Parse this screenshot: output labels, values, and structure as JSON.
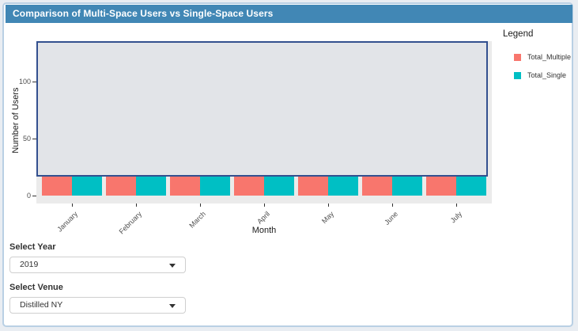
{
  "header": {
    "title": "Comparison of Multi-Space Users vs Single-Space Users"
  },
  "chart_data": {
    "type": "bar",
    "categories": [
      "January",
      "February",
      "March",
      "April",
      "May",
      "June",
      "July"
    ],
    "series": [
      {
        "name": "Total_Multiple",
        "color": "#F8766D",
        "values": [
          17,
          17,
          17,
          17,
          17,
          17,
          17
        ]
      },
      {
        "name": "Total_Single",
        "color": "#00BFC4",
        "values": [
          17,
          17,
          17,
          17,
          17,
          17,
          17
        ]
      }
    ],
    "values_note": "Bar tops are occluded by the selection rectangle; listed values are the visible heights read off the y-axis (~17 users).",
    "xlabel": "Month",
    "ylabel": "Number of Users",
    "yticks": [
      0,
      50,
      100
    ],
    "ylim": [
      0,
      135
    ],
    "grid": false,
    "legend_title": "Legend",
    "legend_position": "right"
  },
  "selection_rectangle": {
    "description": "brush selection covering the plot from the panel top to just above the bar tops",
    "stroke": "#33508F",
    "fill": "light blue-gray, mostly transparent"
  },
  "controls": {
    "year": {
      "label": "Select Year",
      "value": "2019"
    },
    "venue": {
      "label": "Select Venue",
      "value": "Distilled NY"
    }
  },
  "colors": {
    "header_bg": "#4187B5",
    "header_text": "#FFFFFF",
    "panel_bg": "#EBEBEB",
    "card_border": "#B9D0E4",
    "page_bg": "#E9EDF2",
    "tick_text": "#4D4D4D"
  }
}
